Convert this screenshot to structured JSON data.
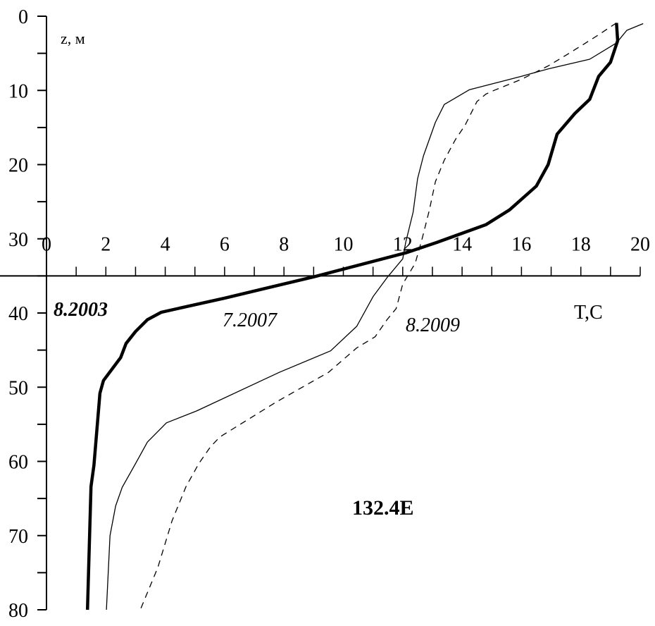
{
  "chart_data": {
    "type": "line",
    "title": "",
    "xlabel": "T,C",
    "ylabel": "z, м",
    "xlim": [
      0,
      20
    ],
    "ylim": [
      0,
      80
    ],
    "y_inverted": true,
    "x_axis_crosses_at_z": 35,
    "x_ticks": [
      0,
      2,
      4,
      6,
      8,
      10,
      12,
      14,
      16,
      18,
      20
    ],
    "x_tick_labels": [
      "0",
      "2",
      "4",
      "6",
      "8",
      "10",
      "12",
      "14",
      "16",
      "18",
      "20"
    ],
    "y_ticks": [
      0,
      10,
      20,
      30,
      40,
      50,
      60,
      70,
      80
    ],
    "y_tick_labels": [
      "0",
      "10",
      "20",
      "30",
      "40",
      "50",
      "60",
      "70",
      "80"
    ],
    "grid": false,
    "annotation": "132.4E",
    "series": [
      {
        "name": "8.2003",
        "style": "thick-solid",
        "points": [
          [
            19.2,
            0.9
          ],
          [
            19.24,
            3.3
          ],
          [
            19.0,
            6.2
          ],
          [
            18.6,
            8.1
          ],
          [
            18.3,
            11.2
          ],
          [
            17.8,
            13.1
          ],
          [
            17.2,
            15.9
          ],
          [
            16.9,
            20.0
          ],
          [
            16.5,
            22.9
          ],
          [
            15.6,
            26.1
          ],
          [
            14.8,
            28.1
          ],
          [
            13.14,
            30.5
          ],
          [
            12.1,
            31.9
          ],
          [
            9.03,
            35.1
          ],
          [
            6.0,
            38.0
          ],
          [
            3.87,
            39.9
          ],
          [
            3.4,
            40.9
          ],
          [
            3.0,
            42.5
          ],
          [
            2.68,
            44.1
          ],
          [
            2.5,
            46.0
          ],
          [
            1.92,
            49.1
          ],
          [
            1.8,
            50.8
          ],
          [
            1.6,
            60.5
          ],
          [
            1.5,
            63.4
          ],
          [
            1.38,
            80
          ]
        ]
      },
      {
        "name": "7.2007",
        "style": "thin-solid",
        "points": [
          [
            20.1,
            1.0
          ],
          [
            19.55,
            1.9
          ],
          [
            19.2,
            3.6
          ],
          [
            18.3,
            5.8
          ],
          [
            16.9,
            7.1
          ],
          [
            16.0,
            8.1
          ],
          [
            14.25,
            9.9
          ],
          [
            13.4,
            11.9
          ],
          [
            13.1,
            14.3
          ],
          [
            12.7,
            18.8
          ],
          [
            12.5,
            21.9
          ],
          [
            12.35,
            26.4
          ],
          [
            12.1,
            30.5
          ],
          [
            12.0,
            32.7
          ],
          [
            11.5,
            35.1
          ],
          [
            11.0,
            37.8
          ],
          [
            10.45,
            41.8
          ],
          [
            9.57,
            45.1
          ],
          [
            7.84,
            48.0
          ],
          [
            5.06,
            53.2
          ],
          [
            4.04,
            54.8
          ],
          [
            3.4,
            57.4
          ],
          [
            3.0,
            60.3
          ],
          [
            2.55,
            63.5
          ],
          [
            2.33,
            66
          ],
          [
            2.14,
            70
          ],
          [
            2.02,
            80
          ]
        ]
      },
      {
        "name": "8.2009",
        "style": "dashed",
        "points": [
          [
            19.2,
            0.9
          ],
          [
            18.6,
            2.5
          ],
          [
            18.05,
            3.9
          ],
          [
            17.4,
            5.5
          ],
          [
            16.9,
            6.7
          ],
          [
            16.0,
            8.5
          ],
          [
            15.1,
            9.96
          ],
          [
            14.8,
            10.5
          ],
          [
            14.5,
            11.5
          ],
          [
            14.1,
            14.7
          ],
          [
            13.78,
            16.6
          ],
          [
            13.4,
            19.4
          ],
          [
            13.1,
            22.3
          ],
          [
            12.9,
            26.1
          ],
          [
            12.66,
            29.9
          ],
          [
            12.42,
            33.3
          ],
          [
            12.0,
            36.1
          ],
          [
            11.78,
            39.4
          ],
          [
            11.47,
            40.9
          ],
          [
            11.07,
            43.2
          ],
          [
            10.45,
            44.7
          ],
          [
            9.5,
            48.0
          ],
          [
            7.74,
            52.0
          ],
          [
            5.84,
            56.7
          ],
          [
            5.53,
            58.0
          ],
          [
            5.13,
            60.3
          ],
          [
            4.7,
            63.4
          ],
          [
            4.23,
            68
          ],
          [
            3.75,
            74.3
          ],
          [
            3.16,
            80
          ]
        ]
      }
    ]
  }
}
